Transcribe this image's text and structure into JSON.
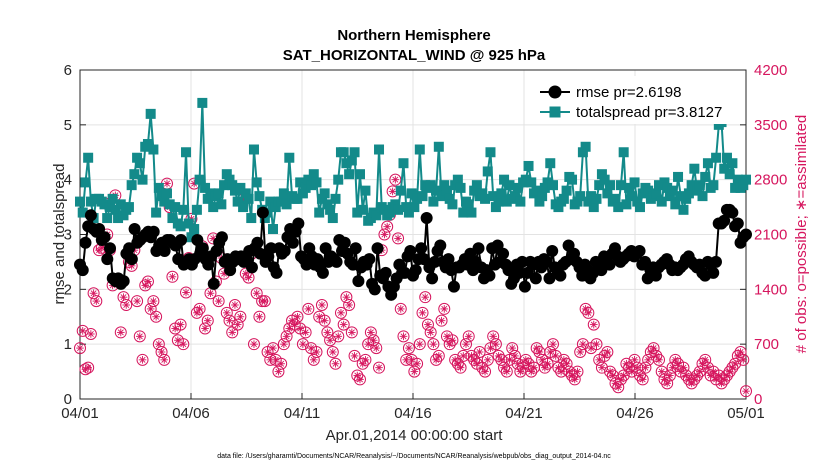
{
  "chart_data": {
    "type": "line",
    "title_line1": "Northern Hemisphere",
    "title_line2": "SAT_HORIZONTAL_WIND @ 925 hPa",
    "xlabel": "Apr.01,2014 00:00:00 start",
    "ylabel_left": "rmse and totalspread",
    "ylabel_right": "# of obs: o=possible; ∗=assimilated",
    "footnote": "data file: /Users/gharamti/Documents/NCAR/Reanalysis/~/Documents/NCAR/Reanalysis/webpub/obs_diag_output_2014-04.nc",
    "x_range": [
      0,
      30
    ],
    "x_ticks": [
      0,
      5,
      10,
      15,
      20,
      25,
      30
    ],
    "x_tick_labels": [
      "04/01",
      "04/06",
      "04/11",
      "04/16",
      "04/21",
      "04/26",
      "05/01"
    ],
    "ylim_left": [
      0,
      6
    ],
    "yticks_left": [
      "0",
      "1",
      "2",
      "3",
      "4",
      "5",
      "6"
    ],
    "ylim_right": [
      0,
      4200
    ],
    "yticks_right": [
      "0",
      "700",
      "1400",
      "2100",
      "2800",
      "3500",
      "4200"
    ],
    "grid": true,
    "legend_position": "top-right",
    "colors": {
      "rmse": "#000000",
      "totalspread": "#138a8a",
      "obs": "#d6165e",
      "grid": "#e3e3e3",
      "axis": "#262626"
    },
    "series": [
      {
        "name": "rmse",
        "legend": "rmse pr=2.6198",
        "axis": "left",
        "marker": "circle",
        "values": [
          2.45,
          2.35,
          2.85,
          3.15,
          3.35,
          3.1,
          3.05,
          3.1,
          2.9,
          2.95,
          2.55,
          2.75,
          2.2,
          2.15,
          2.2,
          2.1,
          2.15,
          2.65,
          2.75,
          2.55,
          3.1,
          2.85,
          2.9,
          2.95,
          3.0,
          3.05,
          2.95,
          3.05,
          2.7,
          2.8,
          2.85,
          2.7,
          2.9,
          2.9,
          2.85,
          2.8,
          2.55,
          2.9,
          2.45,
          2.5,
          2.55,
          2.45,
          2.55,
          2.9,
          2.65,
          2.75,
          2.55,
          2.45,
          2.6,
          2.1,
          2.7,
          2.85,
          2.95,
          2.5,
          2.55,
          2.35,
          2.5,
          2.6,
          2.55,
          2.6,
          2.5,
          2.55,
          2.7,
          2.4,
          2.75,
          2.85,
          2.65,
          3.4,
          2.5,
          2.6,
          2.75,
          2.4,
          2.3,
          2.75,
          2.65,
          2.7,
          2.95,
          3.1,
          2.85,
          3.05,
          3.2,
          2.6,
          2.55,
          2.45,
          2.75,
          2.6,
          2.45,
          2.55,
          2.4,
          2.3,
          2.75,
          2.5,
          2.6,
          2.55,
          2.5,
          2.9,
          2.7,
          2.85,
          2.65,
          2.5,
          2.45,
          2.75,
          2.15,
          2.4,
          2.5,
          2.45,
          2.55,
          2.1,
          2.0,
          2.75,
          2.25,
          2.2,
          2.3,
          2.05,
          1.9,
          2.05,
          2.2,
          2.45,
          2.3,
          2.3,
          2.6,
          2.7,
          2.25,
          2.35,
          2.55,
          2.75,
          2.55,
          3.3,
          2.4,
          2.2,
          2.5,
          2.7,
          2.8,
          2.5,
          2.4,
          2.55,
          2.35,
          2.05,
          2.4,
          2.4,
          2.45,
          2.55,
          2.45,
          2.65,
          2.35,
          2.5,
          2.75,
          2.4,
          2.2,
          2.35,
          2.25,
          2.75,
          2.45,
          2.8,
          2.5,
          2.65,
          2.45,
          2.35,
          2.1,
          2.2,
          2.45,
          2.3,
          2.5,
          2.05,
          2.3,
          2.5,
          2.45,
          2.2,
          2.5,
          2.4,
          2.55,
          2.5,
          2.2,
          2.7,
          2.4,
          2.3,
          2.25,
          2.45,
          2.5,
          2.8,
          2.55,
          2.65,
          2.5,
          2.4,
          2.25,
          2.45,
          2.35,
          2.2,
          2.3,
          2.5,
          2.45,
          2.35,
          2.6,
          2.55,
          2.45,
          2.65,
          2.75,
          2.6,
          2.5,
          2.55,
          2.6,
          2.65,
          2.7,
          2.6,
          2.65,
          2.7,
          2.45,
          2.5,
          2.2,
          2.35,
          2.4,
          2.25,
          2.4,
          2.45,
          2.5,
          2.55,
          2.45,
          2.35,
          2.4,
          2.35,
          2.4,
          2.45,
          2.55,
          2.6,
          2.5,
          2.45,
          2.4,
          2.45,
          2.3,
          2.25,
          2.5,
          2.45,
          2.3,
          2.5,
          3.2,
          3.2,
          3.25,
          3.45,
          3.45,
          3.4,
          3.15,
          3.2,
          2.85,
          2.95,
          3.0
        ]
      },
      {
        "name": "totalspread",
        "legend": "totalspread pr=3.8127",
        "axis": "left",
        "marker": "square",
        "values": [
          3.6,
          3.4,
          3.95,
          4.4,
          3.6,
          3.3,
          3.65,
          3.65,
          3.6,
          3.55,
          3.3,
          3.5,
          3.65,
          3.45,
          3.3,
          3.55,
          3.35,
          3.45,
          3.5,
          3.9,
          4.1,
          4.4,
          4.3,
          4.0,
          4.6,
          4.65,
          5.2,
          4.55,
          3.4,
          3.85,
          3.7,
          3.6,
          3.75,
          3.55,
          3.3,
          3.5,
          3.2,
          3.15,
          3.45,
          4.5,
          3.2,
          2.95,
          3.1,
          3.45,
          4.0,
          5.4,
          3.85,
          3.65,
          3.75,
          3.5,
          3.7,
          3.75,
          3.55,
          3.9,
          4.1,
          4.0,
          3.9,
          3.8,
          3.6,
          3.85,
          3.5,
          3.75,
          3.65,
          3.3,
          4.55,
          3.95,
          3.7,
          3.45,
          3.3,
          3.4,
          3.6,
          3.1,
          3.5,
          3.6,
          3.6,
          3.75,
          3.55,
          4.4,
          3.7,
          3.65,
          3.65,
          3.95,
          3.75,
          3.85,
          4.0,
          3.9,
          4.1,
          3.95,
          3.4,
          3.65,
          3.75,
          3.55,
          3.45,
          3.3,
          3.65,
          4.0,
          4.5,
          4.5,
          4.3,
          4.1,
          4.35,
          4.5,
          3.4,
          4.1,
          3.45,
          3.8,
          3.25,
          3.3,
          3.4,
          3.35,
          4.55,
          3.5,
          3.45,
          3.35,
          3.4,
          3.5,
          3.55,
          3.45,
          3.8,
          4.3,
          3.5,
          3.4,
          3.75,
          3.5,
          3.65,
          4.55,
          3.7,
          3.9,
          3.85,
          3.9,
          3.6,
          3.8,
          4.6,
          3.7,
          3.9,
          3.8,
          3.65,
          3.55,
          3.9,
          4.0,
          3.85,
          3.4,
          3.6,
          3.55,
          3.4,
          3.8,
          3.9,
          3.7,
          3.75,
          3.65,
          4.15,
          4.5,
          3.7,
          3.5,
          3.6,
          3.75,
          4.0,
          3.6,
          3.9,
          3.65,
          3.7,
          3.85,
          3.6,
          3.95,
          4.0,
          4.25,
          3.95,
          3.75,
          3.8,
          3.6,
          3.7,
          3.85,
          3.95,
          4.3,
          3.9,
          3.55,
          3.5,
          3.6,
          3.65,
          3.8,
          4.05,
          4.0,
          3.55,
          3.6,
          3.7,
          4.5,
          4.6,
          3.6,
          3.7,
          3.5,
          3.65,
          3.9,
          4.1,
          4.0,
          3.75,
          3.9,
          3.6,
          3.65,
          3.5,
          3.9,
          4.5,
          3.55,
          3.85,
          3.7,
          3.95,
          3.6,
          3.5,
          3.75,
          3.85,
          3.8,
          3.65,
          3.7,
          3.75,
          3.9,
          3.6,
          3.95,
          3.85,
          3.7,
          3.8,
          3.55,
          4.05,
          3.7,
          3.45,
          3.65,
          3.75,
          3.9,
          4.2,
          3.8,
          3.9,
          3.7,
          4.05,
          4.3,
          3.85,
          3.9,
          4.4,
          5.0,
          5.05,
          4.2,
          4.4,
          4.1,
          4.3,
          3.85,
          4.0,
          3.85,
          3.9,
          4.0
        ]
      },
      {
        "name": "obs_possible_assimilated",
        "legend": "",
        "axis": "right",
        "marker": "circle-star",
        "values": [
          650,
          870,
          380,
          400,
          830,
          1350,
          1250,
          1900,
          1930,
          2500,
          2100,
          1900,
          1450,
          2600,
          2400,
          850,
          1300,
          1200,
          1750,
          1700,
          1900,
          1250,
          800,
          500,
          1450,
          1500,
          1150,
          1250,
          1050,
          700,
          600,
          500,
          2750,
          2450,
          1560,
          900,
          750,
          950,
          700,
          1360,
          1800,
          2300,
          2750,
          1100,
          1150,
          1950,
          900,
          1000,
          1350,
          2050,
          1500,
          1250,
          1800,
          1600,
          1100,
          1000,
          850,
          1200,
          950,
          1050,
          2550,
          1600,
          1550,
          1850,
          700,
          1350,
          1050,
          1250,
          1250,
          600,
          500,
          650,
          500,
          350,
          450,
          700,
          800,
          900,
          1000,
          950,
          1050,
          900,
          700,
          850,
          1150,
          650,
          500,
          600,
          1050,
          1200,
          1000,
          850,
          750,
          600,
          450,
          800,
          1100,
          950,
          1300,
          1200,
          850,
          550,
          300,
          250,
          450,
          500,
          700,
          850,
          750,
          650,
          400,
          1900,
          2100,
          2200,
          2350,
          2650,
          2800,
          2050,
          1150,
          800,
          500,
          650,
          500,
          350,
          450,
          700,
          1100,
          1300,
          950,
          850,
          700,
          500,
          550,
          1000,
          1150,
          800,
          700,
          750,
          500,
          450,
          400,
          550,
          700,
          800,
          550,
          500,
          450,
          600,
          400,
          350,
          500,
          650,
          800,
          700,
          550,
          500,
          400,
          350,
          500,
          650,
          550,
          450,
          350,
          400,
          500,
          450,
          350,
          400,
          650,
          600,
          500,
          400,
          450,
          600,
          700,
          550,
          400,
          350,
          500,
          450,
          350,
          300,
          250,
          350,
          600,
          700,
          1150,
          1100,
          650,
          950,
          700,
          500,
          400,
          550,
          600,
          350,
          300,
          200,
          150,
          250,
          300,
          450,
          400,
          350,
          500,
          400,
          300,
          250,
          400,
          500,
          600,
          650,
          550,
          500,
          350,
          250,
          200,
          300,
          400,
          500,
          450,
          350,
          400,
          300,
          250,
          200,
          250,
          300,
          350,
          450,
          500,
          400,
          300,
          350,
          250,
          300,
          200,
          250,
          300,
          350,
          400,
          450,
          550,
          600,
          500,
          100
        ]
      }
    ]
  }
}
